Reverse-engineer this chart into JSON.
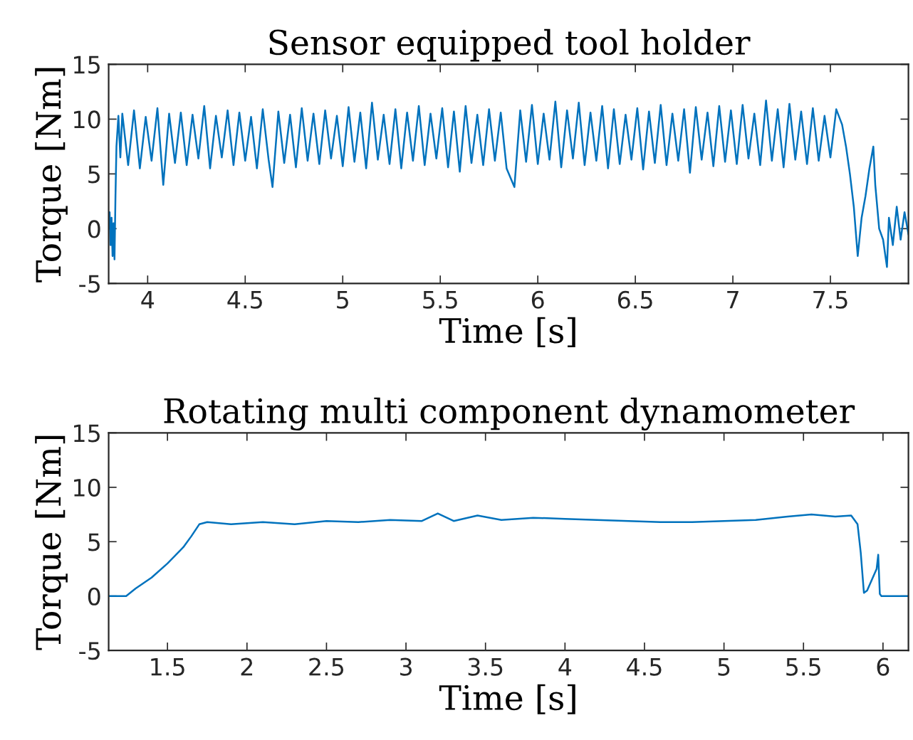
{
  "chart_data": [
    {
      "type": "line",
      "title": "Sensor equipped tool holder",
      "xlabel": "Time [s]",
      "ylabel": "Torque [Nm]",
      "xlim": [
        3.8,
        7.9
      ],
      "ylim": [
        -5,
        15
      ],
      "xticks": [
        4,
        4.5,
        5,
        5.5,
        6,
        6.5,
        7,
        7.5
      ],
      "yticks": [
        -5,
        0,
        5,
        10,
        15
      ],
      "grid": false,
      "legend": false,
      "x": [
        3.8,
        3.805,
        3.81,
        3.815,
        3.82,
        3.825,
        3.83,
        3.835,
        3.84,
        3.85,
        3.86,
        3.87,
        3.9,
        3.93,
        3.96,
        3.99,
        4.02,
        4.05,
        4.08,
        4.11,
        4.14,
        4.17,
        4.2,
        4.23,
        4.26,
        4.29,
        4.32,
        4.35,
        4.38,
        4.41,
        4.44,
        4.47,
        4.5,
        4.53,
        4.56,
        4.59,
        4.62,
        4.64,
        4.67,
        4.7,
        4.73,
        4.76,
        4.79,
        4.82,
        4.85,
        4.88,
        4.91,
        4.94,
        4.97,
        5.0,
        5.03,
        5.06,
        5.09,
        5.12,
        5.15,
        5.18,
        5.21,
        5.24,
        5.27,
        5.3,
        5.33,
        5.36,
        5.39,
        5.42,
        5.45,
        5.48,
        5.51,
        5.54,
        5.57,
        5.6,
        5.63,
        5.66,
        5.69,
        5.72,
        5.75,
        5.78,
        5.81,
        5.84,
        5.88,
        5.91,
        5.94,
        5.97,
        6.0,
        6.03,
        6.06,
        6.09,
        6.12,
        6.15,
        6.18,
        6.21,
        6.24,
        6.27,
        6.3,
        6.33,
        6.36,
        6.39,
        6.42,
        6.45,
        6.48,
        6.51,
        6.54,
        6.57,
        6.6,
        6.63,
        6.66,
        6.69,
        6.72,
        6.75,
        6.78,
        6.81,
        6.84,
        6.87,
        6.9,
        6.93,
        6.96,
        6.99,
        7.02,
        7.05,
        7.08,
        7.11,
        7.14,
        7.17,
        7.2,
        7.23,
        7.26,
        7.29,
        7.32,
        7.35,
        7.38,
        7.41,
        7.44,
        7.47,
        7.5,
        7.53,
        7.56,
        7.58,
        7.6,
        7.62,
        7.64,
        7.66,
        7.68,
        7.7,
        7.72,
        7.73,
        7.75,
        7.77,
        7.79,
        7.8,
        7.82,
        7.84,
        7.86,
        7.88,
        7.9
      ],
      "series": [
        {
          "color": "#0072bd",
          "values": [
            0,
            1.5,
            -1.5,
            1,
            -2.5,
            0.5,
            -2.8,
            3,
            7.5,
            10.3,
            6.5,
            10.5,
            5.8,
            10.8,
            5.5,
            10.2,
            6.2,
            11,
            4,
            10.5,
            6,
            10.6,
            5.8,
            10.4,
            6.4,
            11.2,
            5.5,
            10.3,
            6.5,
            10.8,
            5.8,
            10.6,
            6.2,
            10.2,
            5.5,
            10.9,
            6.3,
            3.8,
            10.7,
            6,
            10.4,
            5.6,
            11,
            6.2,
            10.5,
            5.9,
            10.8,
            6.4,
            10.3,
            5.7,
            11.1,
            6.1,
            10.6,
            5.5,
            11.5,
            6.3,
            10.4,
            5.9,
            10.9,
            5.5,
            10.6,
            6.2,
            11.2,
            5.8,
            10.5,
            6.4,
            11,
            5.6,
            10.7,
            5.2,
            11.2,
            6,
            10.4,
            5.8,
            10.9,
            6.2,
            10.6,
            5.5,
            3.8,
            10.8,
            6.1,
            11.3,
            5.9,
            10.5,
            6.3,
            11.6,
            5.6,
            10.8,
            6.4,
            11.5,
            5.8,
            10.6,
            6.2,
            11.2,
            5.5,
            10.9,
            5.9,
            10.4,
            6.3,
            11,
            5.4,
            10.7,
            6,
            11.3,
            5.8,
            10.5,
            6.2,
            10.9,
            5.1,
            11.1,
            6.3,
            10.6,
            5.7,
            11.2,
            6.1,
            10.8,
            5.9,
            11.3,
            6.4,
            10.5,
            5.8,
            11.7,
            6.2,
            10.9,
            5.6,
            11.4,
            6.3,
            10.7,
            5.9,
            11,
            6.2,
            10.3,
            6.5,
            10.9,
            9.5,
            7.5,
            5,
            2,
            -2.5,
            1,
            3,
            5.5,
            7.5,
            4,
            0,
            -1,
            -3.5,
            1,
            -1.5,
            2,
            -1,
            1.5,
            -0.5
          ]
        }
      ]
    },
    {
      "type": "line",
      "title": "Rotating multi component dynamometer",
      "xlabel": "Time [s]",
      "ylabel": "Torque [Nm]",
      "xlim": [
        1.13,
        6.16
      ],
      "ylim": [
        -5,
        15
      ],
      "xticks": [
        1.5,
        2,
        2.5,
        3,
        3.5,
        4,
        4.5,
        5,
        5.5,
        6
      ],
      "yticks": [
        -5,
        0,
        5,
        10,
        15
      ],
      "grid": false,
      "legend": false,
      "x": [
        1.13,
        1.24,
        1.3,
        1.4,
        1.5,
        1.6,
        1.65,
        1.7,
        1.75,
        1.9,
        2.1,
        2.3,
        2.5,
        2.7,
        2.9,
        3.1,
        3.2,
        3.3,
        3.45,
        3.6,
        3.8,
        4.0,
        4.2,
        4.4,
        4.6,
        4.8,
        5.0,
        5.2,
        5.4,
        5.55,
        5.7,
        5.8,
        5.84,
        5.86,
        5.88,
        5.9,
        5.93,
        5.96,
        5.97,
        5.98,
        5.99,
        6.05,
        6.16
      ],
      "series": [
        {
          "color": "#0072bd",
          "values": [
            0,
            0,
            0.7,
            1.7,
            3,
            4.5,
            5.5,
            6.6,
            6.8,
            6.6,
            6.8,
            6.6,
            6.9,
            6.8,
            7,
            6.9,
            7.6,
            6.9,
            7.4,
            7,
            7.2,
            7.1,
            7,
            6.9,
            6.8,
            6.8,
            6.9,
            7,
            7.3,
            7.5,
            7.3,
            7.4,
            6.6,
            4,
            0.3,
            0.5,
            1.5,
            2.5,
            3.8,
            0.2,
            0,
            0,
            0
          ]
        }
      ]
    }
  ]
}
